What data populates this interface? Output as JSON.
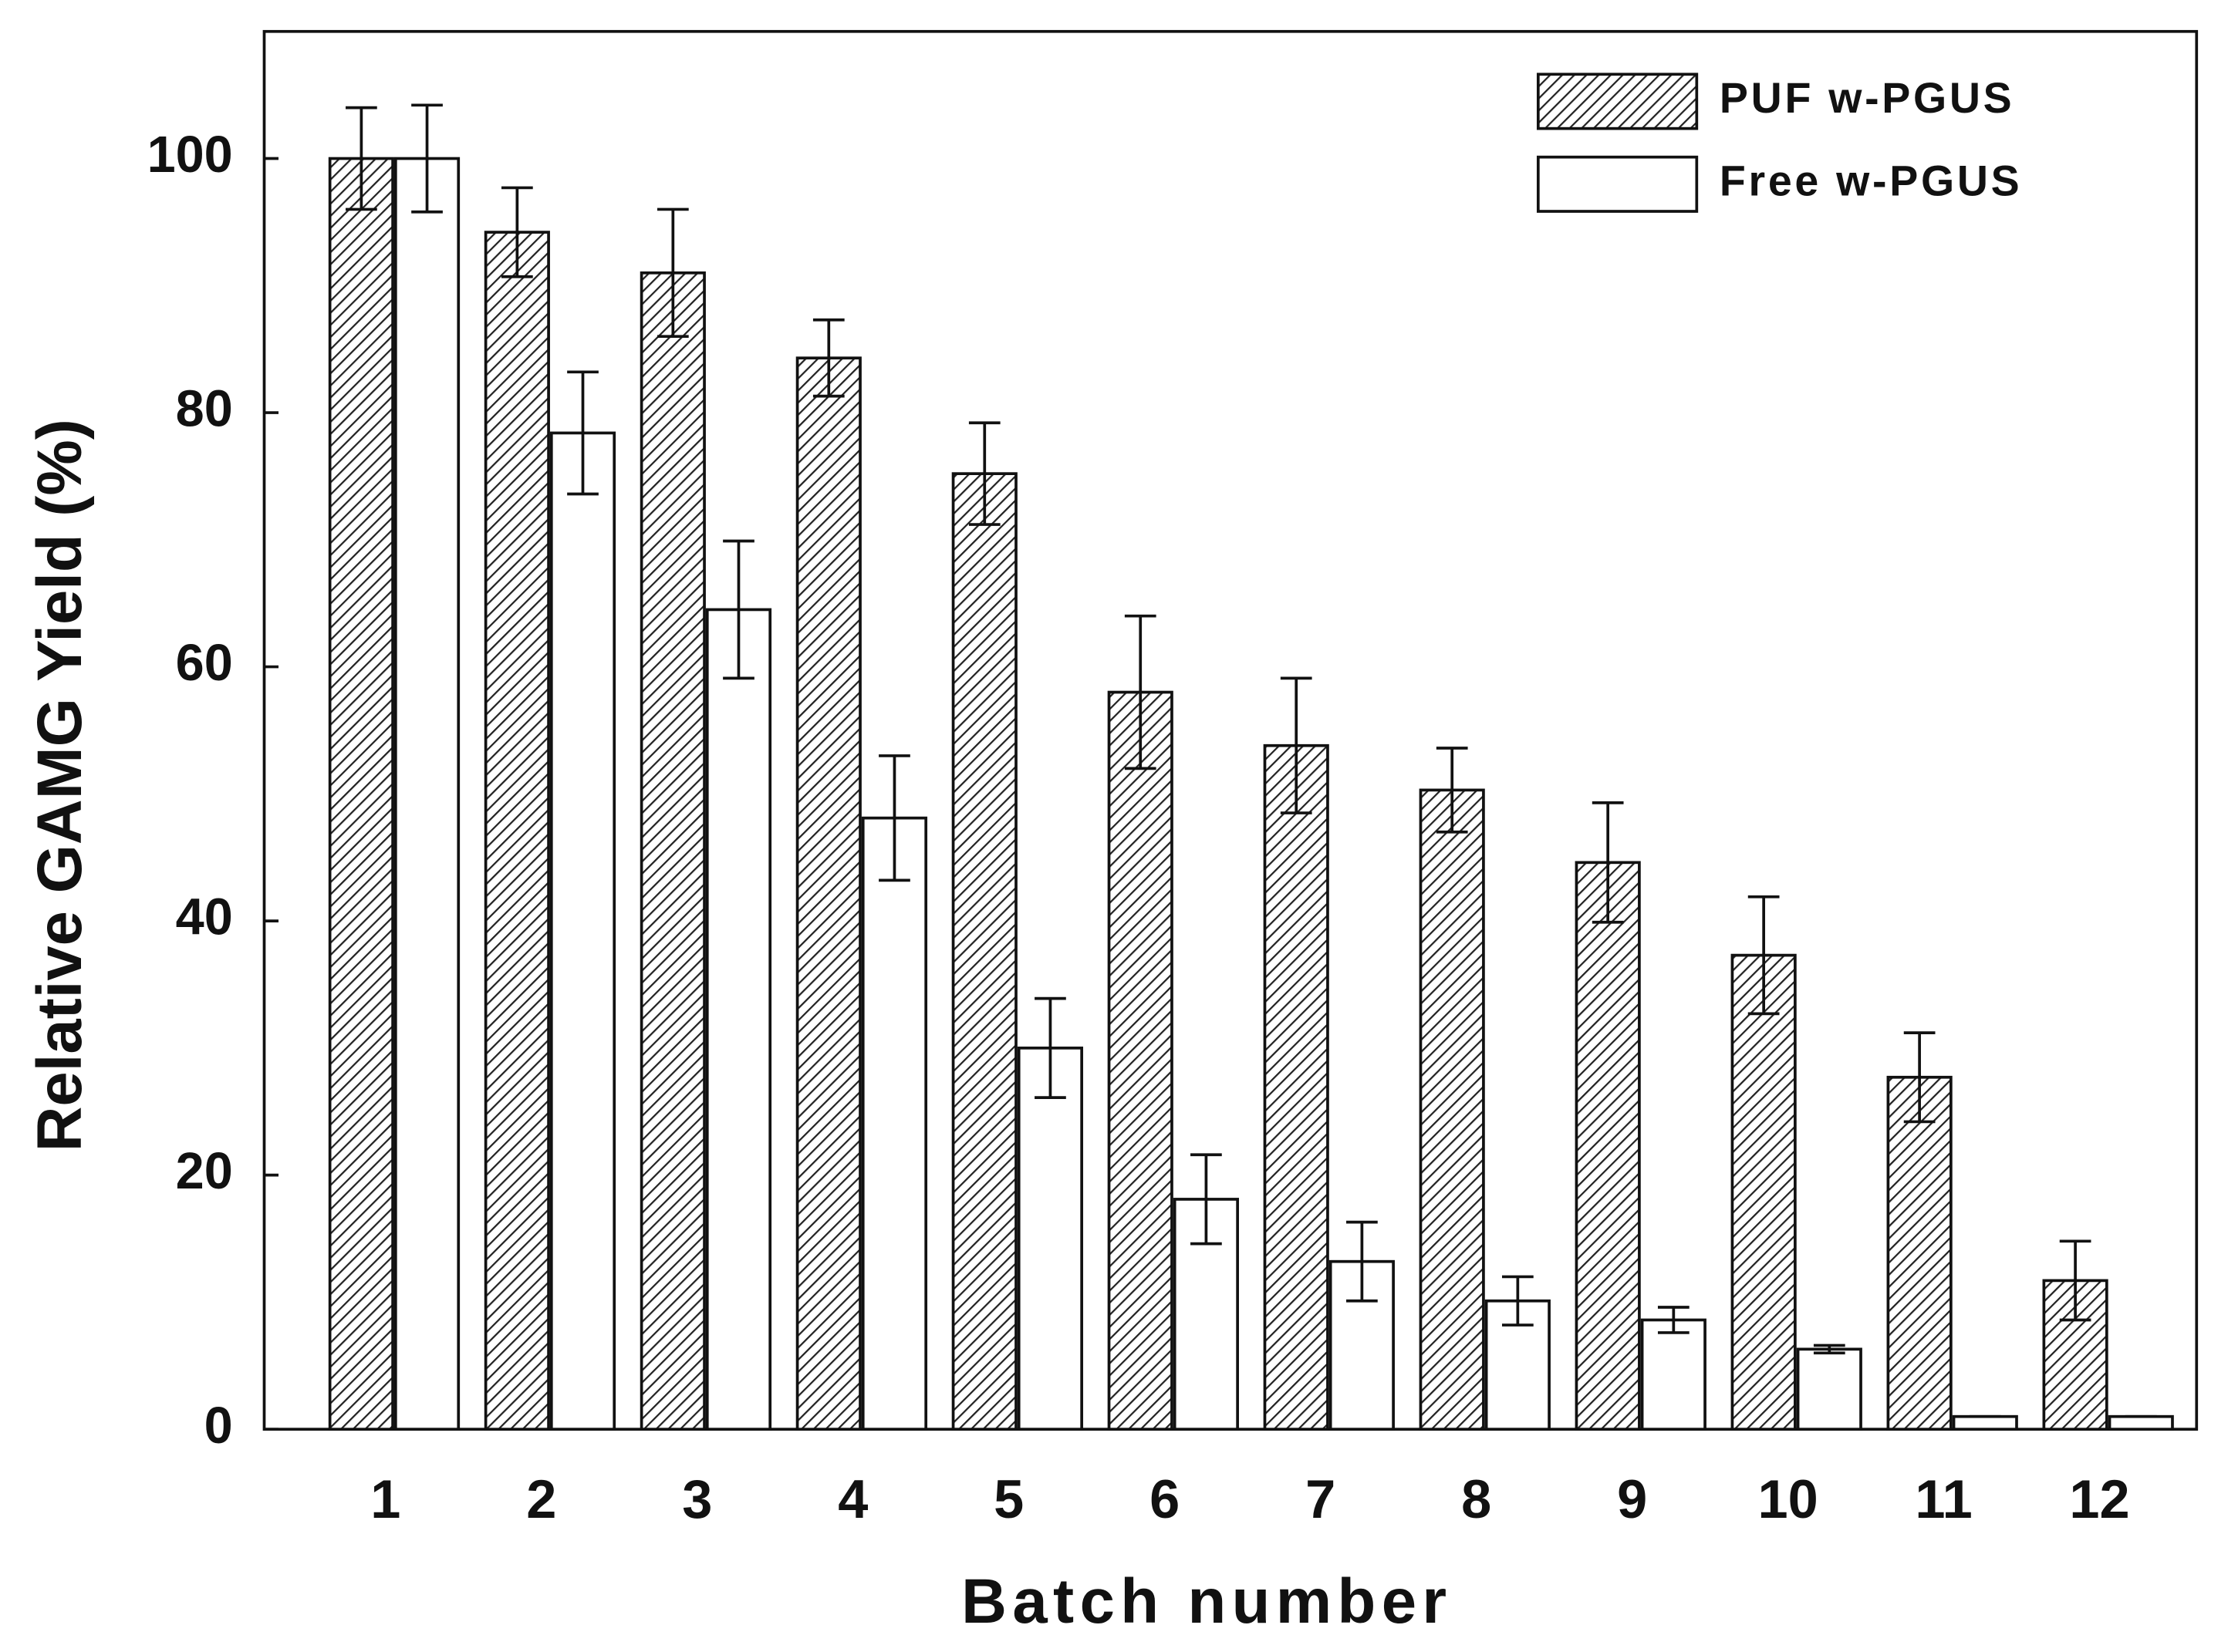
{
  "chart_data": {
    "type": "bar",
    "x_label": "Batch number",
    "y_label": "Relative GAMG Yield (%)",
    "categories": [
      "1",
      "2",
      "3",
      "4",
      "5",
      "6",
      "7",
      "8",
      "9",
      "10",
      "11",
      "12"
    ],
    "series": [
      {
        "name": "PUF w-PGUS",
        "color": "#222222",
        "hatch": true,
        "values": [
          100,
          94.2,
          91,
          84.3,
          75.2,
          58,
          53.8,
          50.3,
          44.6,
          37.3,
          27.7,
          11.7
        ],
        "errors": [
          4,
          3.5,
          5,
          3,
          4,
          6,
          5.3,
          3.3,
          4.7,
          4.6,
          3.5,
          3.1
        ]
      },
      {
        "name": "Free w-PGUS",
        "color": "#ffffff",
        "hatch": false,
        "values": [
          100,
          78.4,
          64.5,
          48.1,
          30,
          18.1,
          13.2,
          10.1,
          8.6,
          6.3,
          1,
          1
        ],
        "errors": [
          4.2,
          4.8,
          5.4,
          4.9,
          3.9,
          3.5,
          3.1,
          1.9,
          1,
          0.3,
          0,
          0
        ]
      }
    ],
    "ylim": [
      0,
      110
    ],
    "yticks": [
      0,
      20,
      40,
      60,
      80,
      100
    ],
    "legend": "upper right"
  }
}
